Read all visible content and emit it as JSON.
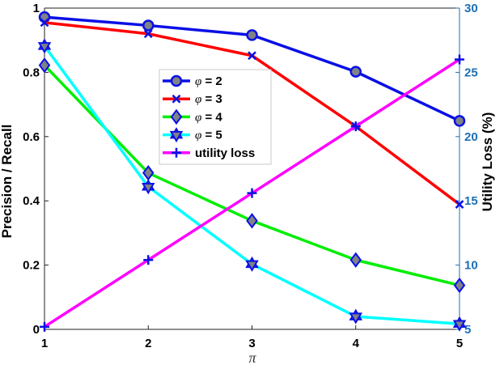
{
  "chart_data": {
    "type": "line",
    "x": [
      1,
      2,
      3,
      4,
      5
    ],
    "xlabel": "π",
    "xlim": [
      1,
      5
    ],
    "xticks": [
      "1",
      "2",
      "3",
      "4",
      "5"
    ],
    "ylabel_left": "Precision / Recall",
    "ylim_left": [
      0,
      1
    ],
    "yticks_left": [
      "0",
      "0.2",
      "0.4",
      "0.6",
      "0.8",
      "1"
    ],
    "ylabel_right": "Utility Loss (%)",
    "ylim_right": [
      5,
      30
    ],
    "yticks_right": [
      "5",
      "10",
      "15",
      "20",
      "25",
      "30"
    ],
    "grid": true,
    "legend_position": "upper-center",
    "series": [
      {
        "name_prefix": "φ",
        "name_suffix": " = 2",
        "axis": "left",
        "color": "#0a10e6",
        "marker": "circle",
        "marker_face": "#7f8286",
        "values": [
          0.972,
          0.946,
          0.916,
          0.802,
          0.649
        ]
      },
      {
        "name_prefix": "φ",
        "name_suffix": " = 3",
        "axis": "left",
        "color": "#ff0000",
        "marker": "x",
        "marker_face": "#0a10e6",
        "values": [
          0.955,
          0.92,
          0.852,
          0.632,
          0.389
        ]
      },
      {
        "name_prefix": "φ",
        "name_suffix": " = 4",
        "axis": "left",
        "color": "#00ee00",
        "marker": "diamond",
        "marker_face": "#7f8286",
        "values": [
          0.822,
          0.487,
          0.338,
          0.216,
          0.137
        ]
      },
      {
        "name_prefix": "φ",
        "name_suffix": " = 5",
        "axis": "left",
        "color": "#00ffff",
        "marker": "hexagram",
        "marker_face": "#7f8286",
        "values": [
          0.882,
          0.444,
          0.203,
          0.04,
          0.017
        ]
      },
      {
        "name_prefix": "",
        "name_suffix": "utility loss",
        "axis": "right",
        "color": "#ff00ff",
        "marker": "plus",
        "marker_face": "#0a10e6",
        "values": [
          5.2,
          10.4,
          15.6,
          20.8,
          26.0
        ]
      }
    ]
  }
}
